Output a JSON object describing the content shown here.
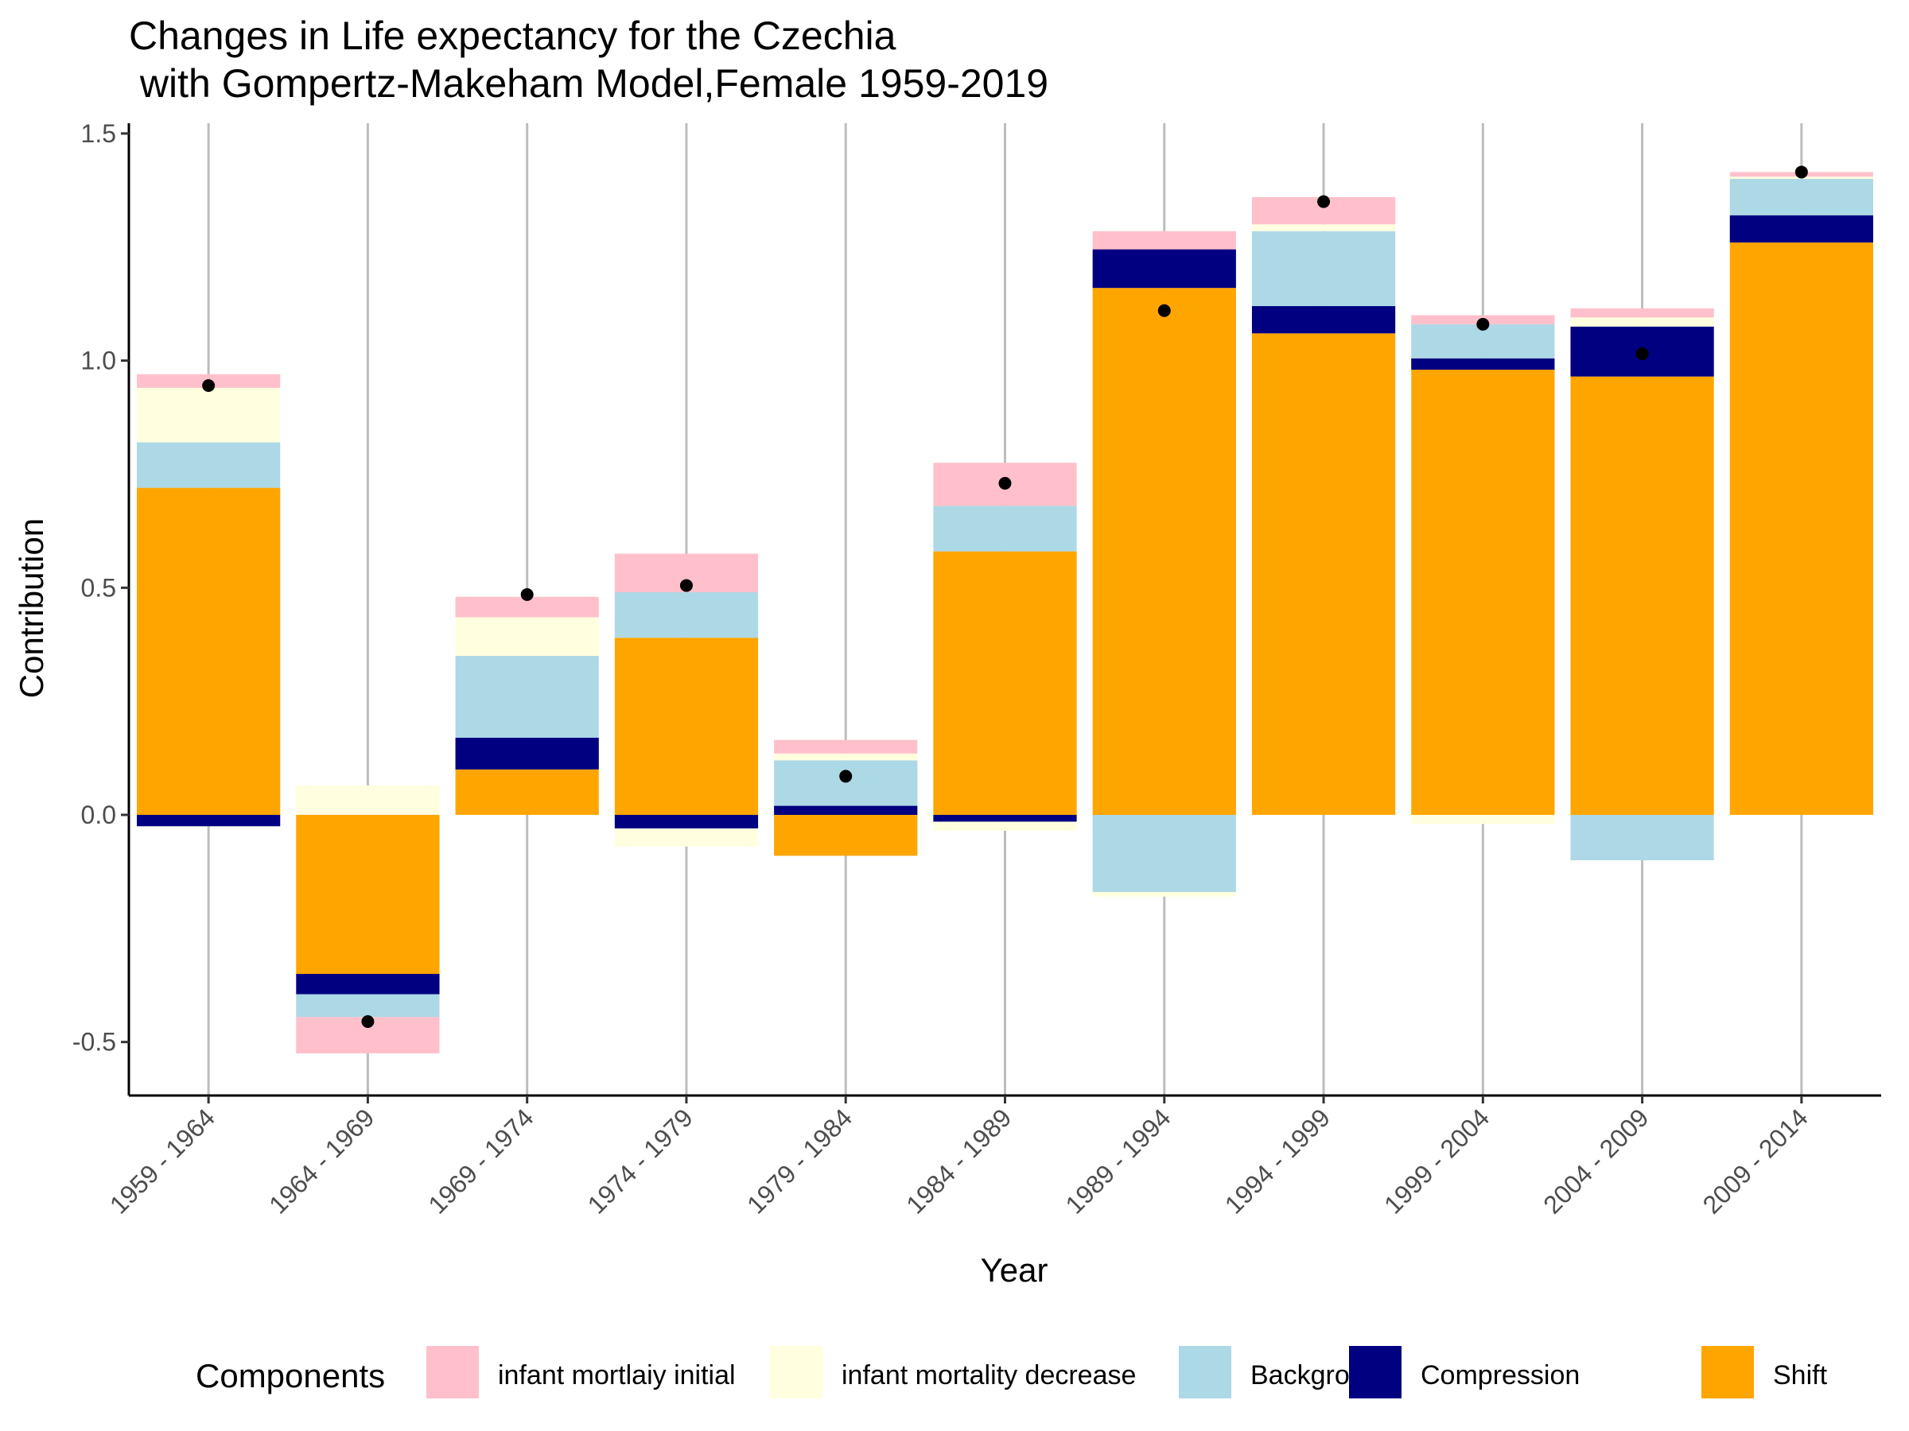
{
  "chart_data": {
    "type": "bar",
    "stacked": true,
    "title": [
      "Changes in Life expectancy for the Czechia",
      " with Gompertz-Makeham Model,Female 1959-2019"
    ],
    "xlabel": "Year",
    "ylabel": "Contribution",
    "ylim": [
      -0.62,
      1.52
    ],
    "yticks": [
      -0.5,
      0.0,
      0.5,
      1.0,
      1.5
    ],
    "ytick_labels": [
      "-0.5",
      "0.0",
      "0.5",
      "1.0",
      "1.5"
    ],
    "grid": "vertical-major",
    "categories": [
      "1959 - 1964",
      "1964 - 1969",
      "1969 - 1974",
      "1974 - 1979",
      "1979 - 1984",
      "1984 - 1989",
      "1989 - 1994",
      "1994 - 1999",
      "1999 - 2004",
      "2004 - 2009",
      "2009 - 2014"
    ],
    "legend": {
      "title": "Components",
      "position": "bottom"
    },
    "series": [
      {
        "name": "infant mortlaiy initial",
        "color": "#FFC0CB",
        "values": [
          0.03,
          -0.08,
          0.045,
          0.085,
          0.03,
          0.095,
          0.04,
          0.06,
          0.02,
          0.02,
          0.01
        ]
      },
      {
        "name": "infant mortality decrease",
        "color": "#FFFFE0",
        "values": [
          0.12,
          0.065,
          0.085,
          -0.04,
          0.015,
          -0.02,
          -0.01,
          0.015,
          -0.02,
          0.02,
          0.005
        ]
      },
      {
        "name": "Background",
        "color": "#ADD8E6",
        "values": [
          0.1,
          -0.05,
          0.18,
          0.1,
          0.1,
          0.1,
          -0.17,
          0.165,
          0.075,
          -0.1,
          0.08
        ]
      },
      {
        "name": "Compression",
        "color": "#000080",
        "values": [
          -0.025,
          -0.045,
          0.07,
          -0.03,
          0.02,
          -0.015,
          0.085,
          0.06,
          0.025,
          0.11,
          0.06
        ]
      },
      {
        "name": "Shift",
        "color": "#FFA500",
        "values": [
          0.72,
          -0.35,
          0.1,
          0.39,
          -0.09,
          0.58,
          1.16,
          1.06,
          0.98,
          0.965,
          1.26
        ]
      }
    ],
    "totals": {
      "color": "#000000",
      "values": [
        0.945,
        -0.455,
        0.485,
        0.505,
        0.085,
        0.73,
        1.11,
        1.35,
        1.08,
        1.015,
        1.415
      ]
    }
  }
}
